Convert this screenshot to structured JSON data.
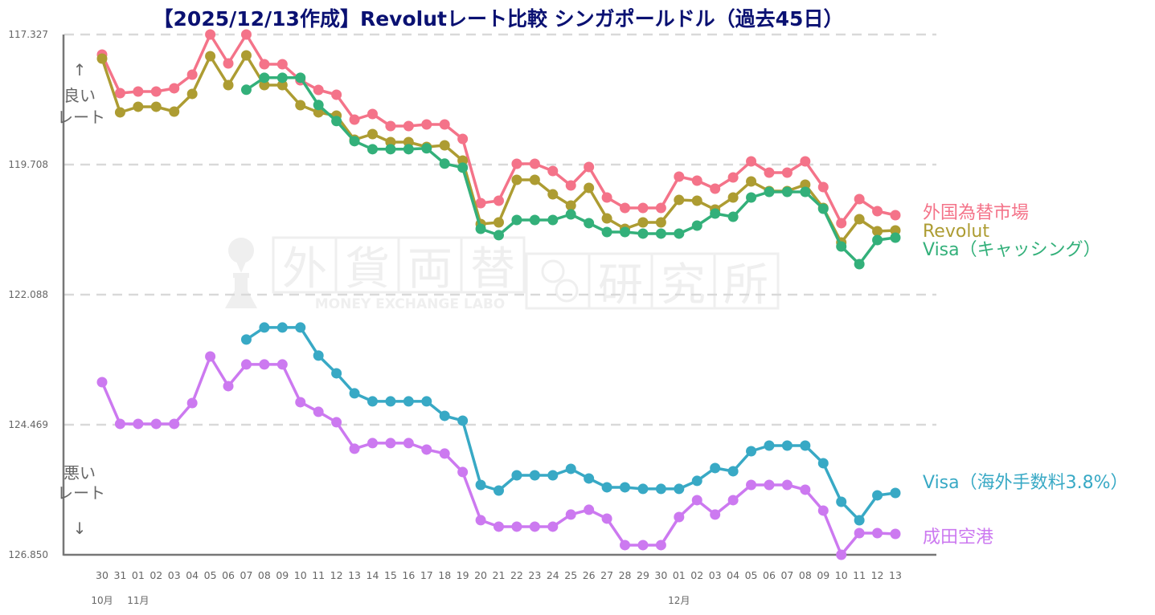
{
  "chart_data": {
    "type": "line",
    "title": "【2025/12/13作成】Revolutレート比較 シンガポールドル（過去45日）",
    "xlabel": "",
    "ylabel": "",
    "y_inverted": true,
    "ylim": [
      117.327,
      126.85
    ],
    "yticks": [
      "117.327",
      "119.708",
      "122.088",
      "124.469",
      "126.850"
    ],
    "grid": "horizontal-dashed",
    "legend_placement": "right",
    "categories": [
      "30",
      "31",
      "01",
      "02",
      "03",
      "04",
      "05",
      "06",
      "07",
      "08",
      "09",
      "10",
      "11",
      "12",
      "13",
      "14",
      "15",
      "16",
      "17",
      "18",
      "19",
      "20",
      "21",
      "22",
      "23",
      "24",
      "25",
      "26",
      "27",
      "28",
      "29",
      "30",
      "01",
      "02",
      "03",
      "04",
      "05",
      "06",
      "07",
      "08",
      "09",
      "10",
      "11",
      "12",
      "13"
    ],
    "month_labels": [
      {
        "label": "10月",
        "at_index": 0
      },
      {
        "label": "11月",
        "at_index": 2
      },
      {
        "label": "12月",
        "at_index": 32
      }
    ],
    "annotations": {
      "good": [
        "良い",
        "レート"
      ],
      "bad": [
        "悪い",
        "レート"
      ],
      "up_arrow": "↑",
      "down_arrow": "↓"
    },
    "watermark": {
      "chars": [
        "外",
        "貨",
        "両",
        "替",
        "研",
        "究",
        "所"
      ],
      "subtitle": "MONEY EXCHANGE LABO"
    },
    "series": [
      {
        "name": "外国為替市場",
        "color": "#f47389",
        "values": [
          117.694,
          118.4,
          118.37,
          118.37,
          118.311,
          118.062,
          117.327,
          117.856,
          117.327,
          117.871,
          117.871,
          118.165,
          118.341,
          118.429,
          118.885,
          118.782,
          119.002,
          119.002,
          118.973,
          118.973,
          119.237,
          120.413,
          120.369,
          119.693,
          119.693,
          119.825,
          120.09,
          119.752,
          120.31,
          120.501,
          120.501,
          120.501,
          119.928,
          120.002,
          120.149,
          119.943,
          119.649,
          119.855,
          119.855,
          119.649,
          120.119,
          120.78,
          120.34,
          120.56,
          120.634
        ]
      },
      {
        "name": "Revolut",
        "color": "#ad9c32",
        "values": [
          117.768,
          118.752,
          118.649,
          118.649,
          118.738,
          118.414,
          117.724,
          118.253,
          117.709,
          118.253,
          118.253,
          118.62,
          118.752,
          118.811,
          119.252,
          119.149,
          119.296,
          119.296,
          119.384,
          119.355,
          119.634,
          120.795,
          120.766,
          119.987,
          119.987,
          120.252,
          120.457,
          120.134,
          120.693,
          120.883,
          120.766,
          120.766,
          120.355,
          120.369,
          120.531,
          120.31,
          120.016,
          120.193,
          120.193,
          120.075,
          120.501,
          121.133,
          120.707,
          120.927,
          120.913
        ]
      },
      {
        "name": "Visa（キャッシング）",
        "color": "#33b07a",
        "values": [
          null,
          null,
          null,
          null,
          null,
          null,
          null,
          null,
          118.338,
          118.118,
          118.118,
          118.118,
          118.617,
          118.911,
          119.279,
          119.426,
          119.426,
          119.426,
          119.411,
          119.69,
          119.764,
          120.883,
          121.0,
          120.722,
          120.722,
          120.722,
          120.619,
          120.78,
          120.942,
          120.942,
          120.971,
          120.971,
          120.971,
          120.825,
          120.604,
          120.663,
          120.31,
          120.207,
          120.207,
          120.207,
          120.516,
          121.207,
          121.53,
          121.089,
          121.045
        ]
      },
      {
        "name": "Visa（海外手数料3.8%）",
        "color": "#38a9c5",
        "values": [
          null,
          null,
          null,
          null,
          null,
          null,
          null,
          null,
          122.91,
          122.69,
          122.69,
          122.69,
          123.204,
          123.528,
          123.895,
          124.042,
          124.042,
          124.042,
          124.042,
          124.307,
          124.395,
          125.571,
          125.674,
          125.395,
          125.395,
          125.395,
          125.277,
          125.453,
          125.615,
          125.615,
          125.644,
          125.644,
          125.644,
          125.497,
          125.262,
          125.321,
          124.954,
          124.851,
          124.851,
          124.851,
          125.174,
          125.88,
          126.218,
          125.762,
          125.718
        ]
      },
      {
        "name": "成田空港",
        "color": "#cc79f0",
        "values": [
          123.69,
          124.454,
          124.454,
          124.454,
          124.454,
          124.072,
          123.22,
          123.763,
          123.366,
          123.366,
          123.366,
          124.057,
          124.233,
          124.424,
          124.909,
          124.806,
          124.806,
          124.806,
          124.924,
          124.997,
          125.335,
          126.217,
          126.335,
          126.335,
          126.335,
          126.335,
          126.114,
          126.026,
          126.188,
          126.673,
          126.673,
          126.673,
          126.159,
          125.85,
          126.114,
          125.85,
          125.571,
          125.571,
          125.571,
          125.659,
          126.041,
          126.85,
          126.453,
          126.453,
          126.468
        ]
      }
    ]
  }
}
